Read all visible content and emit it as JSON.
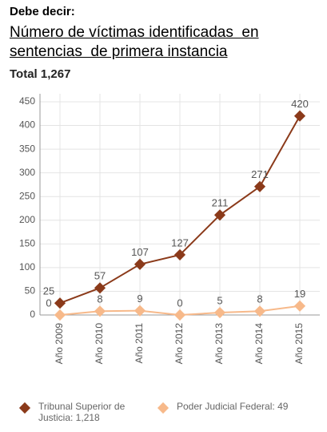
{
  "header": "Debe decir:",
  "chart_data": {
    "type": "line",
    "title": [
      "Número de víctimas identificadas  en",
      "sentencias  de primera instancia"
    ],
    "subtitle": "Total 1,267",
    "categories": [
      "Año 2009",
      "Año 2010",
      "Año 2011",
      "Año 2012",
      "Año 2013",
      "Año 2014",
      "Año 2015"
    ],
    "series": [
      {
        "name": "Tribunal Superior de Justicia: 1,218",
        "color": "#8b3a1a",
        "values": [
          25,
          57,
          107,
          127,
          211,
          271,
          420
        ]
      },
      {
        "name": "Poder Judicial Federal: 49",
        "color": "#f7b98a",
        "values": [
          0,
          8,
          9,
          0,
          5,
          8,
          19
        ]
      }
    ],
    "ylim": [
      0,
      450
    ],
    "yticks": [
      0,
      50,
      100,
      150,
      200,
      250,
      300,
      350,
      400,
      450
    ],
    "grid": true,
    "legend": "bottom"
  }
}
